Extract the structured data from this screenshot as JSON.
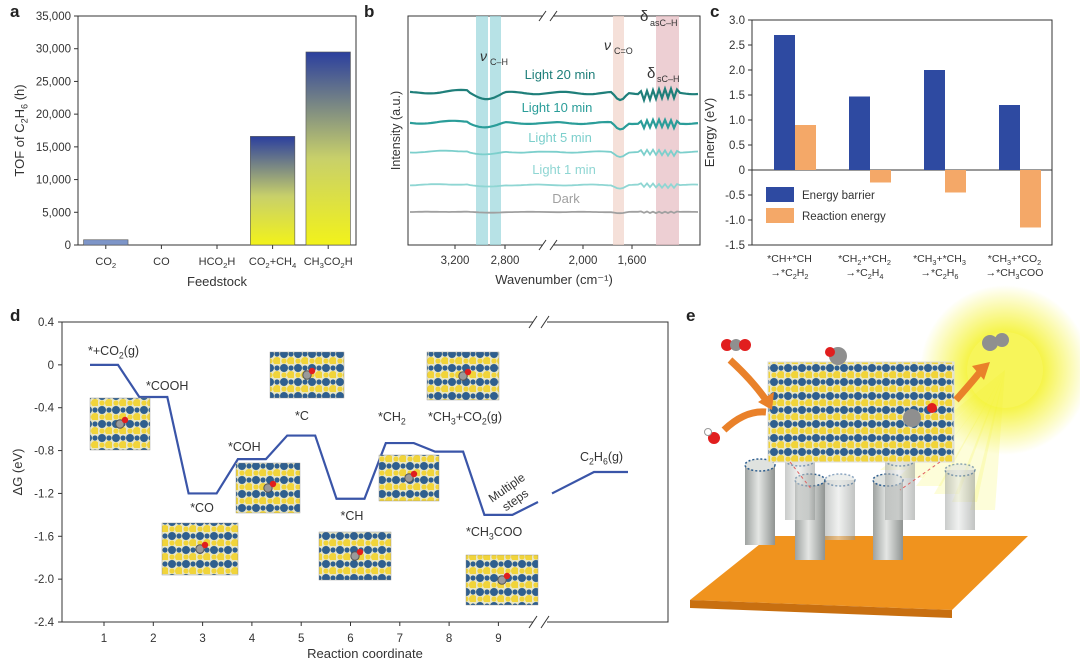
{
  "panels": {
    "a": "a",
    "b": "b",
    "c": "c",
    "d": "d",
    "e": "e"
  },
  "chart_data": [
    {
      "panel": "a",
      "type": "bar",
      "ylabel": "TOF of C2H6 (h⁻¹)",
      "xlabel": "Feedstock",
      "categories": [
        "CO2",
        "CO",
        "HCO2H",
        "CO2+CH4",
        "CH3CO2H"
      ],
      "values": [
        800,
        0,
        0,
        16600,
        29500
      ],
      "ylim": [
        0,
        35000
      ],
      "yticks": [
        0,
        5000,
        10000,
        15000,
        20000,
        25000,
        30000,
        35000
      ],
      "ytick_labels": [
        "0",
        "5,000",
        "10,000",
        "15,000",
        "20,000",
        "25,000",
        "30,000",
        "35,000"
      ],
      "colors": {
        "bar_top": "#2b3f9e",
        "bar_bottom": "#f2f21a",
        "plain_bar": "#7d95c8"
      }
    },
    {
      "panel": "b",
      "type": "line",
      "ylabel": "Intensity (a.u.)",
      "xlabel": "Wavenumber (cm⁻¹)",
      "xticks": [
        "3,200",
        "2,800",
        "2,000",
        "1,600"
      ],
      "series": [
        {
          "name": "Light 20 min",
          "color": "#1f7f7a"
        },
        {
          "name": "Light 10 min",
          "color": "#2a9d99"
        },
        {
          "name": "Light 5 min",
          "color": "#7ccfcc"
        },
        {
          "name": "Light 1 min",
          "color": "#8fd6d3"
        },
        {
          "name": "Dark",
          "color": "#a0a0a0"
        }
      ],
      "bands": {
        "nu_ch": "ν",
        "nu_ch_sub": "C–H",
        "nu_co": "ν",
        "nu_co_sub": "C=O",
        "delta_as": "δ",
        "delta_as_sub": "asC–H",
        "delta_s": "δ",
        "delta_s_sub": "sC–H"
      },
      "band_colors": {
        "ch": "#9fd8de",
        "co": "#f1d6cc",
        "as": "#e7bfc4"
      }
    },
    {
      "panel": "c",
      "type": "bar",
      "ylabel": "Energy (eV)",
      "ylim": [
        -1.5,
        3.0
      ],
      "yticks": [
        "3.0",
        "2.5",
        "2.0",
        "1.5",
        "1.0",
        "0.5",
        "0",
        "-0.5",
        "-1.0",
        "-1.5"
      ],
      "categories": [
        [
          "*CH+*CH",
          "→*C2H2"
        ],
        [
          "*CH2+*CH2",
          "→*C2H4"
        ],
        [
          "*CH3+*CH3",
          "→*C2H6"
        ],
        [
          "*CH3+*CO2",
          "→*CH3COO"
        ]
      ],
      "series": [
        {
          "name": "Energy barrier",
          "values": [
            2.7,
            1.47,
            2.0,
            1.3
          ],
          "color": "#2e4aa1"
        },
        {
          "name": "Reaction energy",
          "values": [
            0.9,
            -0.25,
            -0.45,
            -1.15
          ],
          "color": "#f4a868"
        }
      ]
    },
    {
      "panel": "d",
      "type": "line",
      "ylabel": "ΔG (eV)",
      "xlabel": "Reaction coordinate",
      "ylim": [
        -2.4,
        0.4
      ],
      "yticks": [
        "0.4",
        "0",
        "-0.4",
        "-0.8",
        "-1.2",
        "-1.6",
        "-2.0",
        "-2.4"
      ],
      "xticks": [
        "1",
        "2",
        "3",
        "4",
        "5",
        "6",
        "7",
        "8",
        "9"
      ],
      "steps": [
        {
          "x": 1,
          "y": 0.0,
          "label": "*+CO2(g)"
        },
        {
          "x": 2,
          "y": -0.3,
          "label": "*COOH"
        },
        {
          "x": 3,
          "y": -1.2,
          "label": "*CO"
        },
        {
          "x": 4,
          "y": -0.88,
          "label": "*COH"
        },
        {
          "x": 5,
          "y": -0.66,
          "label": "*C"
        },
        {
          "x": 6,
          "y": -1.25,
          "label": "*CH"
        },
        {
          "x": 7,
          "y": -0.73,
          "label": "*CH2"
        },
        {
          "x": 8,
          "y": -0.81,
          "label": "*CH3+CO2(g)"
        },
        {
          "x": 9,
          "y": -1.4,
          "label": "*CH3COO"
        },
        {
          "x": 10.8,
          "y": -1.0,
          "label": "C2H6(g)"
        }
      ],
      "annotation": [
        "Multiple",
        "steps"
      ],
      "line_color": "#3a55a8"
    }
  ],
  "panel_e": {
    "colors": {
      "substrate": "#f0931e",
      "pillar": "#c9ccc8",
      "sun": "#f4f22a",
      "arrow": "#e9812a",
      "metal": "#2f5f8f",
      "support": "#f1d43a"
    }
  }
}
